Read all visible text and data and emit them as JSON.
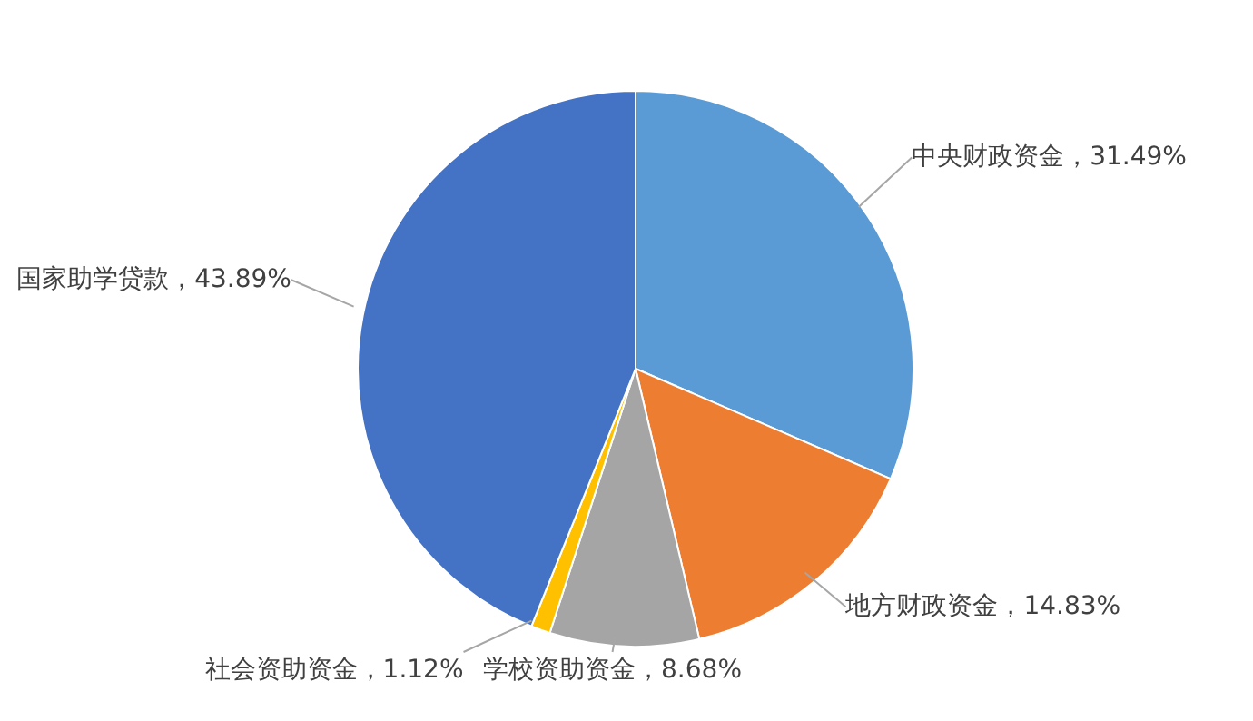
{
  "chart_data": {
    "type": "pie",
    "categories": [
      "中央财政资金",
      "地方财政资金",
      "学校资助资金",
      "社会资助资金",
      "国家助学贷款"
    ],
    "values": [
      31.49,
      14.83,
      8.68,
      1.12,
      43.89
    ],
    "value_labels": [
      "31.49%",
      "14.83%",
      "8.68%",
      "1.12%",
      "43.89%"
    ],
    "colors": [
      "#5b9bd5",
      "#ed7d31",
      "#a5a5a5",
      "#ffc000",
      "#4472c4"
    ],
    "legend": false
  }
}
